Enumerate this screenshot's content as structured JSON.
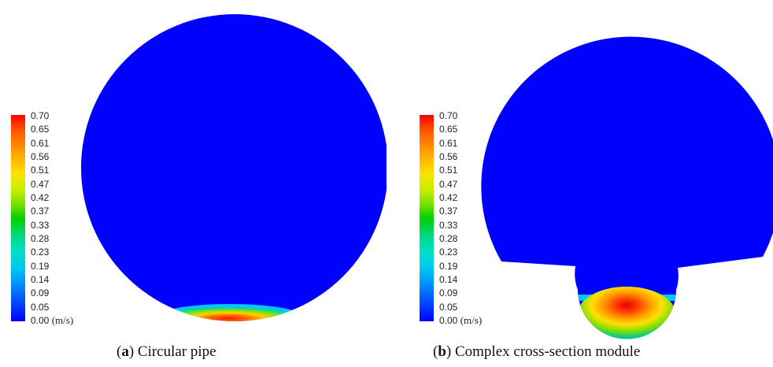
{
  "colorbar": {
    "ticks": [
      "0.70",
      "0.65",
      "0.61",
      "0.56",
      "0.51",
      "0.47",
      "0.42",
      "0.37",
      "0.33",
      "0.28",
      "0.23",
      "0.19",
      "0.14",
      "0.09",
      "0.05",
      "0.00"
    ],
    "unit": "(m/s)"
  },
  "colors": {
    "background_field": "#0000ff",
    "max": "#ff0000",
    "mid": "#00d000"
  },
  "panels": [
    {
      "letter": "a",
      "title": "Circular pipe",
      "paren_open": "(",
      "paren_close": ")"
    },
    {
      "letter": "b",
      "title": "Complex cross-section module",
      "paren_open": "(",
      "paren_close": ")"
    }
  ]
}
